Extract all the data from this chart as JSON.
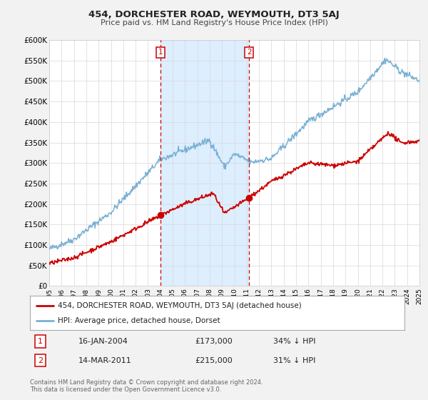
{
  "title": "454, DORCHESTER ROAD, WEYMOUTH, DT3 5AJ",
  "subtitle": "Price paid vs. HM Land Registry's House Price Index (HPI)",
  "ylim": [
    0,
    600000
  ],
  "yticks": [
    0,
    50000,
    100000,
    150000,
    200000,
    250000,
    300000,
    350000,
    400000,
    450000,
    500000,
    550000,
    600000
  ],
  "ytick_labels": [
    "£0",
    "£50K",
    "£100K",
    "£150K",
    "£200K",
    "£250K",
    "£300K",
    "£350K",
    "£400K",
    "£450K",
    "£500K",
    "£550K",
    "£600K"
  ],
  "xlim": [
    1995,
    2025
  ],
  "xticks": [
    1995,
    1996,
    1997,
    1998,
    1999,
    2000,
    2001,
    2002,
    2003,
    2004,
    2005,
    2006,
    2007,
    2008,
    2009,
    2010,
    2011,
    2012,
    2013,
    2014,
    2015,
    2016,
    2017,
    2018,
    2019,
    2020,
    2021,
    2022,
    2023,
    2024,
    2025
  ],
  "red_color": "#cc0000",
  "blue_color": "#7ab0d4",
  "shaded_color": "#ddeeff",
  "marker1_x": 2004.04,
  "marker1_y": 173000,
  "marker2_x": 2011.2,
  "marker2_y": 215000,
  "label1_date": "16-JAN-2004",
  "label1_price": "£173,000",
  "label1_hpi": "34% ↓ HPI",
  "label2_date": "14-MAR-2011",
  "label2_price": "£215,000",
  "label2_hpi": "31% ↓ HPI",
  "legend_red": "454, DORCHESTER ROAD, WEYMOUTH, DT3 5AJ (detached house)",
  "legend_blue": "HPI: Average price, detached house, Dorset",
  "footer1": "Contains HM Land Registry data © Crown copyright and database right 2024.",
  "footer2": "This data is licensed under the Open Government Licence v3.0.",
  "bg_color": "#f2f2f2",
  "plot_bg_color": "#ffffff"
}
